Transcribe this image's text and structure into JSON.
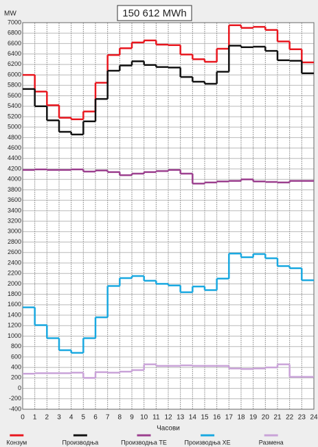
{
  "chart_data": {
    "type": "step",
    "title": "150 612 MWh",
    "y_label": "MW",
    "x_label": "Часови",
    "x": [
      0,
      1,
      2,
      3,
      4,
      5,
      6,
      7,
      8,
      9,
      10,
      11,
      12,
      13,
      14,
      15,
      16,
      17,
      18,
      19,
      20,
      21,
      22,
      23
    ],
    "xlim": [
      0,
      24
    ],
    "xticks": [
      0,
      1,
      2,
      3,
      4,
      5,
      6,
      7,
      8,
      9,
      10,
      11,
      12,
      13,
      14,
      15,
      16,
      17,
      18,
      19,
      20,
      21,
      22,
      23,
      24
    ],
    "ylim": [
      -400,
      7000
    ],
    "yticks": [
      -400,
      -200,
      0,
      200,
      400,
      600,
      800,
      1000,
      1200,
      1400,
      1600,
      1800,
      2000,
      2200,
      2400,
      2600,
      2800,
      3000,
      3200,
      3400,
      3600,
      3800,
      4000,
      4200,
      4400,
      4600,
      4800,
      5000,
      5200,
      5400,
      5600,
      5800,
      6000,
      6200,
      6400,
      6600,
      6800,
      7000
    ],
    "grid": true,
    "legend": "bottom",
    "series": [
      {
        "name": "Конзум",
        "color": "#e8161e",
        "values": [
          6000,
          5680,
          5420,
          5180,
          5150,
          5300,
          5850,
          6380,
          6510,
          6620,
          6660,
          6580,
          6570,
          6390,
          6300,
          6250,
          6500,
          6950,
          6900,
          6920,
          6860,
          6640,
          6490,
          6240
        ]
      },
      {
        "name": "Производња",
        "color": "#111111",
        "values": [
          5730,
          5400,
          5130,
          4910,
          4860,
          5110,
          5540,
          6080,
          6180,
          6260,
          6190,
          6150,
          6140,
          5960,
          5870,
          5830,
          6060,
          6560,
          6530,
          6540,
          6460,
          6280,
          6270,
          6030
        ]
      },
      {
        "name": "Производња ТЕ",
        "color": "#9b3f8e",
        "values": [
          4180,
          4190,
          4180,
          4180,
          4190,
          4150,
          4170,
          4140,
          4080,
          4110,
          4140,
          4160,
          4180,
          4110,
          3920,
          3940,
          3960,
          3970,
          4000,
          3960,
          3950,
          3940,
          3970,
          3970
        ]
      },
      {
        "name": "Производња ХЕ",
        "color": "#19a8e0",
        "values": [
          1550,
          1210,
          960,
          730,
          680,
          960,
          1360,
          1960,
          2110,
          2150,
          2060,
          2000,
          1970,
          1840,
          1950,
          1880,
          2100,
          2580,
          2510,
          2570,
          2490,
          2340,
          2300,
          2070
        ]
      },
      {
        "name": "Размена",
        "color": "#c9a3d8",
        "values": [
          280,
          290,
          290,
          290,
          300,
          200,
          310,
          300,
          320,
          350,
          460,
          430,
          430,
          440,
          430,
          430,
          430,
          380,
          370,
          380,
          400,
          460,
          220,
          220
        ]
      }
    ]
  }
}
